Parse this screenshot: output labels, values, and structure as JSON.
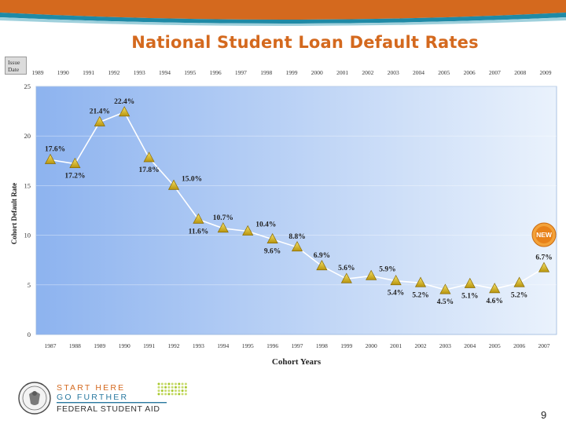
{
  "slide": {
    "title": "National Student Loan Default Rates",
    "page_number": "9",
    "issue_label": [
      "Issue",
      "Date"
    ],
    "new_badge": "NEW"
  },
  "logo": {
    "line1": "START HERE",
    "line2": "GO FURTHER",
    "line3": "FEDERAL STUDENT AID"
  },
  "colors": {
    "banner": "#d4691e",
    "title": "#d4691e",
    "plot_left": "#8db3ef",
    "plot_right": "#eaf2fc",
    "marker": "#e8c020",
    "badge": "#e8821a"
  },
  "chart_data": {
    "type": "line",
    "title": "",
    "xlabel": "Cohort Years",
    "ylabel": "Cohort Default Rate",
    "ylim": [
      0,
      25
    ],
    "yticks": [
      "0",
      "5",
      "10",
      "15",
      "20",
      "25"
    ],
    "grid": true,
    "categories": [
      "1987",
      "1988",
      "1989",
      "1990",
      "1991",
      "1992",
      "1993",
      "1994",
      "1995",
      "1996",
      "1997",
      "1998",
      "1999",
      "2000",
      "2001",
      "2002",
      "2003",
      "2004",
      "2005",
      "2006",
      "2007"
    ],
    "issue_dates": [
      "1989",
      "1990",
      "1991",
      "1992",
      "1993",
      "1994",
      "1995",
      "1996",
      "1997",
      "1998",
      "1999",
      "2000",
      "2001",
      "2002",
      "2003",
      "2004",
      "2005",
      "2006",
      "2007",
      "2008",
      "2009"
    ],
    "values": [
      17.6,
      17.2,
      21.4,
      22.4,
      17.8,
      15.0,
      11.6,
      10.7,
      10.4,
      9.6,
      8.8,
      6.9,
      5.6,
      5.9,
      5.4,
      5.2,
      4.5,
      5.1,
      4.6,
      5.2,
      6.7
    ],
    "data_labels": [
      "17.6%",
      "17.2%",
      "21.4%",
      "22.4%",
      "17.8%",
      "15.0%",
      "11.6%",
      "10.7%",
      "10.4%",
      "9.6%",
      "8.8%",
      "6.9%",
      "5.6%",
      "5.9%",
      "5.4%",
      "5.2%",
      "4.5%",
      "5.1%",
      "4.6%",
      "5.2%",
      "6.7%"
    ],
    "label_positions": [
      "above",
      "below",
      "above",
      "above",
      "below",
      "right",
      "below",
      "above",
      "right",
      "below",
      "above",
      "above",
      "above",
      "right",
      "below",
      "below",
      "below",
      "below",
      "below",
      "below",
      "above"
    ]
  }
}
